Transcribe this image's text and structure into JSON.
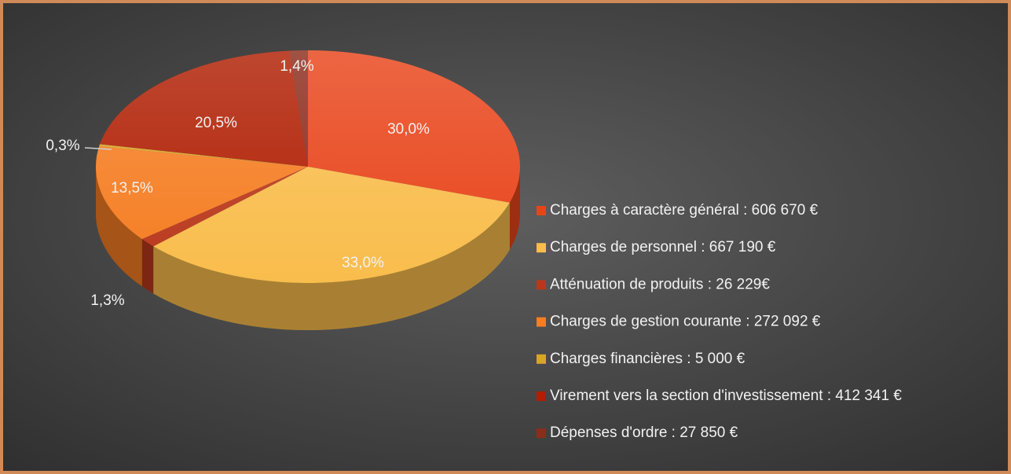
{
  "chart_data": {
    "type": "pie3d",
    "categories": [
      "Charges à caractère général : 606 670 €",
      "Charges de personnel : 667 190 €",
      "Atténuation de produits : 26 229€",
      "Charges de gestion courante : 272 092 €",
      "Charges  financières : 5 000 €",
      "Virement vers la section d'investissement : 412 341 €",
      "Dépenses d'ordre : 27 850 €"
    ],
    "values": [
      30.0,
      33.0,
      1.3,
      13.5,
      0.3,
      20.5,
      1.4
    ],
    "value_labels": [
      "30,0%",
      "33,0%",
      "1,3%",
      "13,5%",
      "0,3%",
      "20,5%",
      "1,4%"
    ],
    "colors": [
      "#e8441a",
      "#f9bd4c",
      "#b9381c",
      "#f57d22",
      "#d9a526",
      "#b01e02",
      "#8c2c1c"
    ],
    "legend": "right"
  }
}
